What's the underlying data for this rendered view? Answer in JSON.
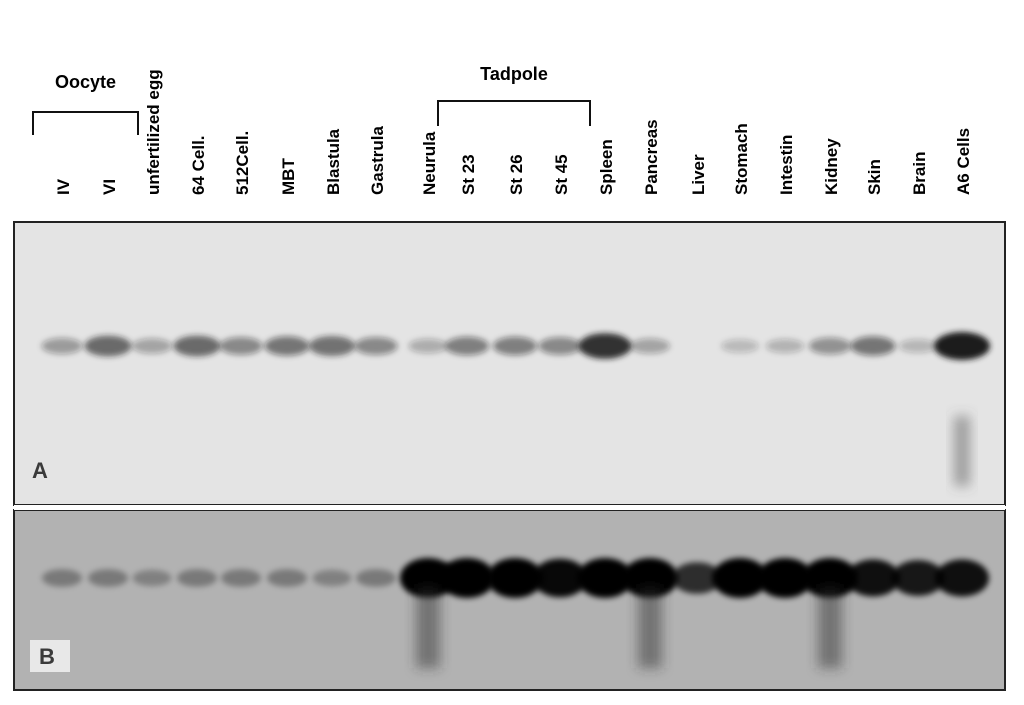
{
  "groups": [
    {
      "label": "Oocyte",
      "first_lane": 0,
      "last_lane": 1
    },
    {
      "label": "Tadpole",
      "first_lane": 9,
      "last_lane": 11
    }
  ],
  "lanes": [
    "IV",
    "VI",
    "unfertilized egg",
    "64 Cell.",
    "512Cell.",
    "MBT",
    "Blastula",
    "Gastrula",
    "Neurula",
    "St 23",
    "St 26",
    "St 45",
    "Spleen",
    "Pancreas",
    "Liver",
    "Stomach",
    "Intestin",
    "Kidney",
    "Skin",
    "Brain",
    "A6 Cells"
  ],
  "panels": [
    {
      "label": "A",
      "background": "#e4e4e4",
      "band_color": "#1a1a1a",
      "band_intensity": [
        0.25,
        0.55,
        0.2,
        0.55,
        0.35,
        0.45,
        0.5,
        0.35,
        0.15,
        0.4,
        0.4,
        0.35,
        0.85,
        0.2,
        0.0,
        0.08,
        0.12,
        0.3,
        0.45,
        0.1,
        1.0
      ]
    },
    {
      "label": "B",
      "background": "#b2b2b2",
      "band_color": "#050505",
      "band_intensity": [
        0.2,
        0.2,
        0.15,
        0.2,
        0.2,
        0.2,
        0.15,
        0.2,
        1.0,
        1.0,
        1.0,
        0.95,
        1.0,
        1.0,
        0.7,
        1.0,
        1.0,
        1.0,
        0.9,
        0.85,
        0.9
      ]
    }
  ]
}
